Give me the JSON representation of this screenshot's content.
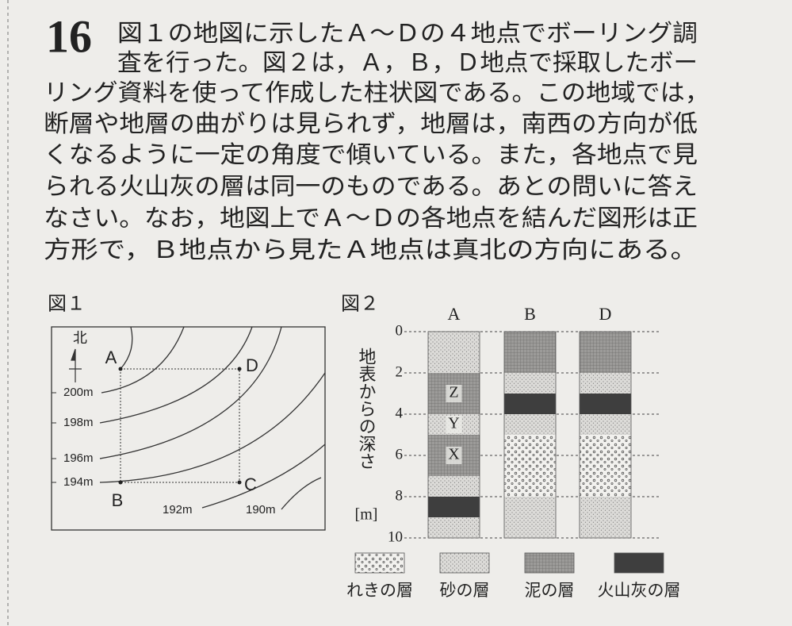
{
  "problem": {
    "number": "16",
    "lines": [
      "図１の地図に示したＡ～Ｄの４地点でボーリング調",
      "査を行った。図２は，Ａ，Ｂ，Ｄ地点で採取したボー",
      "リング資料を使って作成した柱状図である。この地域では，",
      "断層や地層の曲がりは見られず，地層は，南西の方向が低",
      "くなるように一定の角度で傾いている。また，各地点で見",
      "られる火山灰の層は同一のものである。あとの問いに答え",
      "なさい。なお，地図上でＡ～Ｄの各地点を結んだ図形は正",
      "方形で，Ｂ地点から見たＡ地点は真北の方向にある。"
    ]
  },
  "figure1": {
    "caption": "図１",
    "north": "北",
    "points": [
      "A",
      "D",
      "B",
      "C"
    ],
    "contours": [
      "200m",
      "198m",
      "196m",
      "194m",
      "192m",
      "190m"
    ]
  },
  "figure2": {
    "caption": "図２",
    "axis_label": "地表からの深さ",
    "axis_unit": "[m]",
    "ylim": [
      0,
      10
    ],
    "yticks": [
      0,
      2,
      4,
      6,
      8,
      10
    ],
    "columns": [
      {
        "name": "A",
        "layers": [
          {
            "top": 0,
            "bottom": 2,
            "kind": "砂の層"
          },
          {
            "top": 2,
            "bottom": 4,
            "kind": "泥の層",
            "label": "Z"
          },
          {
            "top": 4,
            "bottom": 5,
            "kind": "砂の層",
            "label": "Y"
          },
          {
            "top": 5,
            "bottom": 7,
            "kind": "泥の層",
            "label": "X"
          },
          {
            "top": 7,
            "bottom": 8,
            "kind": "砂の層"
          },
          {
            "top": 8,
            "bottom": 9,
            "kind": "火山灰の層"
          },
          {
            "top": 9,
            "bottom": 10,
            "kind": "砂の層"
          }
        ]
      },
      {
        "name": "B",
        "layers": [
          {
            "top": 0,
            "bottom": 2,
            "kind": "泥の層"
          },
          {
            "top": 2,
            "bottom": 3,
            "kind": "砂の層"
          },
          {
            "top": 3,
            "bottom": 4,
            "kind": "火山灰の層"
          },
          {
            "top": 4,
            "bottom": 5,
            "kind": "砂の層"
          },
          {
            "top": 5,
            "bottom": 8,
            "kind": "れきの層"
          },
          {
            "top": 8,
            "bottom": 10,
            "kind": "砂の層"
          }
        ]
      },
      {
        "name": "D",
        "layers": [
          {
            "top": 0,
            "bottom": 2,
            "kind": "泥の層"
          },
          {
            "top": 2,
            "bottom": 3,
            "kind": "砂の層"
          },
          {
            "top": 3,
            "bottom": 4,
            "kind": "火山灰の層"
          },
          {
            "top": 4,
            "bottom": 5,
            "kind": "砂の層"
          },
          {
            "top": 5,
            "bottom": 8,
            "kind": "れきの層"
          },
          {
            "top": 8,
            "bottom": 10,
            "kind": "砂の層"
          }
        ]
      }
    ],
    "legend": [
      "れきの層",
      "砂の層",
      "泥の層",
      "火山灰の層"
    ]
  }
}
